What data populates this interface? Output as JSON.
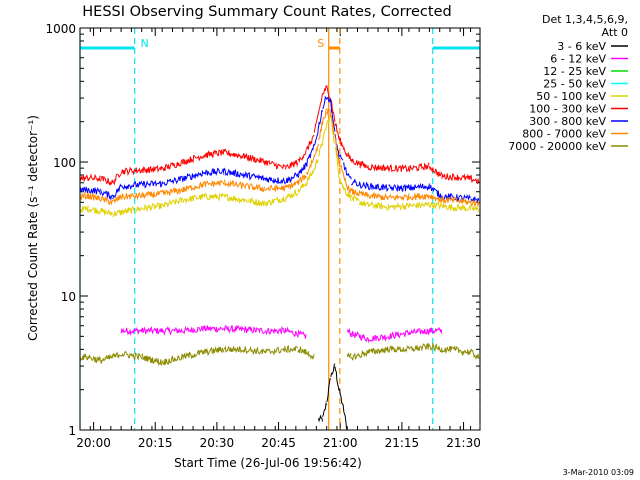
{
  "chart_data": {
    "type": "line",
    "title": "HESSI Observing Summary Count Rates, Corrected",
    "xlabel": "Start Time (26-Jul-06 19:56:42)",
    "ylabel": "Corrected Count Rate (s⁻¹ detector⁻¹)",
    "y_scale": "log",
    "ylim": [
      1,
      1000
    ],
    "xlim_minutes_after_start": [
      0,
      97.3
    ],
    "x_tick_labels": [
      "20:00",
      "20:15",
      "20:30",
      "20:45",
      "21:00",
      "21:15",
      "21:30"
    ],
    "x_tick_minutes_after_start": [
      3.3,
      18.3,
      33.3,
      48.3,
      63.3,
      78.3,
      93.3
    ],
    "y_tick_labels": [
      "1",
      "10",
      "100",
      "1000"
    ],
    "y_tick_values": [
      1,
      10,
      100,
      1000
    ],
    "legend_title_line1": "Det 1,3,4,5,6,9,",
    "legend_title_line2": "Att 0",
    "legend_position": "right, outside plot",
    "footer_date": "3-Mar-2010 03:09",
    "flags": [
      {
        "label": "N",
        "color": "#00e5ee",
        "periods": [
          [
            0,
            13.3
          ],
          [
            85.8,
            97.3
          ]
        ]
      },
      {
        "label": "S",
        "color": "#ff8c00",
        "periods": [
          [
            60.5,
            63.2
          ]
        ]
      }
    ],
    "time_minutes": [
      0,
      2,
      5,
      8,
      10,
      15,
      20,
      25,
      30,
      35,
      40,
      45,
      50,
      53,
      55,
      57,
      58,
      59,
      60,
      61,
      62,
      63,
      64,
      65,
      66,
      68,
      70,
      75,
      80,
      85,
      88,
      90,
      95,
      97
    ],
    "series": [
      {
        "name": "3 - 6 keV",
        "color": "#000000",
        "values": [
          null,
          null,
          null,
          null,
          null,
          null,
          null,
          null,
          null,
          null,
          null,
          null,
          null,
          null,
          null,
          null,
          1.2,
          1.2,
          1.6,
          2.5,
          3,
          2,
          1.5,
          1,
          null,
          null,
          null,
          null,
          null,
          null,
          null,
          null,
          null,
          null
        ]
      },
      {
        "name": "6 - 12 keV",
        "color": "#ff00ff",
        "values": [
          null,
          null,
          null,
          null,
          5.5,
          5.5,
          5.5,
          5.5,
          5.7,
          5.7,
          5.6,
          5.5,
          5.5,
          5.2,
          5,
          null,
          null,
          null,
          null,
          null,
          null,
          null,
          null,
          5.5,
          5.2,
          5,
          4.8,
          5,
          5.3,
          5.5,
          5.5,
          null,
          null,
          null
        ]
      },
      {
        "name": "12 - 25 keV",
        "color": "#00dd00",
        "values": [
          null,
          null,
          null,
          null,
          null,
          null,
          null,
          null,
          null,
          null,
          null,
          null,
          null,
          null,
          null,
          null,
          null,
          null,
          null,
          null,
          null,
          null,
          null,
          null,
          null,
          null,
          null,
          null,
          null,
          null,
          null,
          null,
          null,
          null
        ]
      },
      {
        "name": "25 - 50 keV",
        "color": "#00ffff",
        "values": [
          null,
          null,
          null,
          null,
          null,
          null,
          null,
          null,
          null,
          null,
          null,
          null,
          null,
          null,
          null,
          null,
          null,
          null,
          null,
          null,
          null,
          null,
          null,
          null,
          null,
          null,
          null,
          null,
          null,
          null,
          null,
          null,
          null,
          null
        ]
      },
      {
        "name": "50 - 100 keV",
        "color": "#e0d000",
        "values": [
          44,
          45,
          43,
          41,
          42,
          45,
          47,
          52,
          55,
          55,
          52,
          49,
          54,
          60,
          70,
          88,
          110,
          140,
          190,
          220,
          135,
          80,
          65,
          58,
          54,
          50,
          48,
          46,
          47,
          48,
          47,
          46,
          45,
          44
        ]
      },
      {
        "name": "100 - 300 keV",
        "color": "#ff0000",
        "values": [
          75,
          76,
          75,
          70,
          85,
          87,
          89,
          100,
          112,
          118,
          110,
          100,
          90,
          100,
          120,
          160,
          230,
          320,
          360,
          300,
          200,
          150,
          130,
          113,
          103,
          97,
          92,
          90,
          89,
          93,
          78,
          78,
          75,
          72
        ]
      },
      {
        "name": "300 - 800 keV",
        "color": "#0000ff",
        "values": [
          62,
          62,
          60,
          55,
          66,
          68,
          69,
          75,
          83,
          85,
          80,
          75,
          72,
          80,
          95,
          130,
          180,
          250,
          310,
          280,
          160,
          110,
          100,
          80,
          72,
          68,
          66,
          64,
          64,
          66,
          55,
          55,
          53,
          52
        ]
      },
      {
        "name": "800 - 7000 keV",
        "color": "#ff8800",
        "values": [
          55,
          56,
          53,
          50,
          55,
          56,
          58,
          62,
          68,
          70,
          66,
          63,
          64,
          70,
          80,
          110,
          140,
          200,
          240,
          230,
          150,
          100,
          80,
          65,
          60,
          58,
          56,
          54,
          55,
          56,
          52,
          52,
          50,
          49
        ]
      },
      {
        "name": "7000 - 20000 keV",
        "color": "#8b8b00",
        "values": [
          3.5,
          3.5,
          3.3,
          3.5,
          3.7,
          3.5,
          3.2,
          3.5,
          3.8,
          4,
          4,
          3.8,
          4,
          4,
          3.8,
          3.5,
          null,
          null,
          null,
          null,
          null,
          null,
          null,
          3.5,
          3.5,
          3.6,
          3.8,
          4,
          4,
          4.2,
          4,
          4,
          3.8,
          3.5
        ]
      }
    ]
  }
}
